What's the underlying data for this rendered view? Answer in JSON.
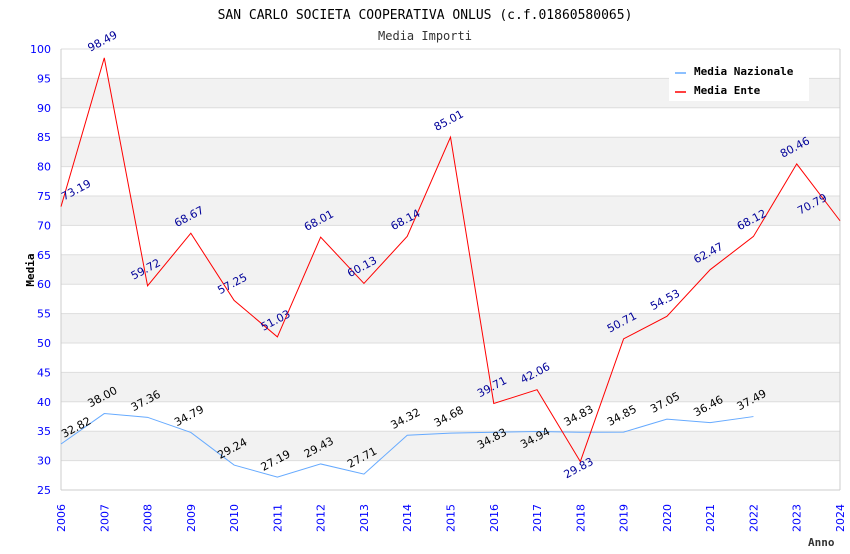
{
  "chart_data": {
    "type": "line",
    "title": "SAN CARLO SOCIETA COOPERATIVA ONLUS (c.f.01860580065)",
    "subtitle": "Media Importi",
    "xlabel": "Anno",
    "ylabel": "Media",
    "ylim": [
      25,
      100
    ],
    "yticks": [
      25,
      30,
      35,
      40,
      45,
      50,
      55,
      60,
      65,
      70,
      75,
      80,
      85,
      90,
      95,
      100
    ],
    "x": [
      2006,
      2007,
      2008,
      2009,
      2010,
      2011,
      2012,
      2013,
      2014,
      2015,
      2016,
      2017,
      2018,
      2019,
      2020,
      2021,
      2022,
      2023,
      2024
    ],
    "legend_position": "top-right",
    "grid": true,
    "series": [
      {
        "name": "Media Nazionale",
        "color": "#66aaff",
        "label_color": "#000000",
        "values": [
          32.82,
          38.0,
          37.36,
          34.79,
          29.24,
          27.19,
          29.43,
          27.71,
          34.32,
          34.68,
          34.83,
          34.94,
          34.83,
          34.85,
          37.05,
          36.46,
          37.49,
          null,
          null
        ],
        "labels": [
          "32.82",
          "38.00",
          "37.36",
          "34.79",
          "29.24",
          "27.19",
          "29.43",
          "27.71",
          "34.32",
          "34.68",
          "34.83",
          "34.94",
          "34.83",
          "34.85",
          "37.05",
          "36.46",
          "37.49",
          null,
          null
        ]
      },
      {
        "name": "Media Ente",
        "color": "#ff0000",
        "label_color": "#000099",
        "values": [
          73.19,
          98.49,
          59.72,
          68.67,
          57.25,
          51.03,
          68.01,
          60.13,
          68.14,
          85.01,
          39.71,
          42.06,
          29.83,
          50.71,
          54.53,
          62.47,
          68.12,
          80.46,
          70.79
        ],
        "labels": [
          "73.19",
          "98.49",
          "59.72",
          "68.67",
          "57.25",
          "51.03",
          "68.01",
          "60.13",
          "68.14",
          "85.01",
          "39.71",
          "42.06",
          "29.83",
          "50.71",
          "54.53",
          "62.47",
          "68.12",
          "80.46",
          "70.79"
        ]
      }
    ]
  }
}
